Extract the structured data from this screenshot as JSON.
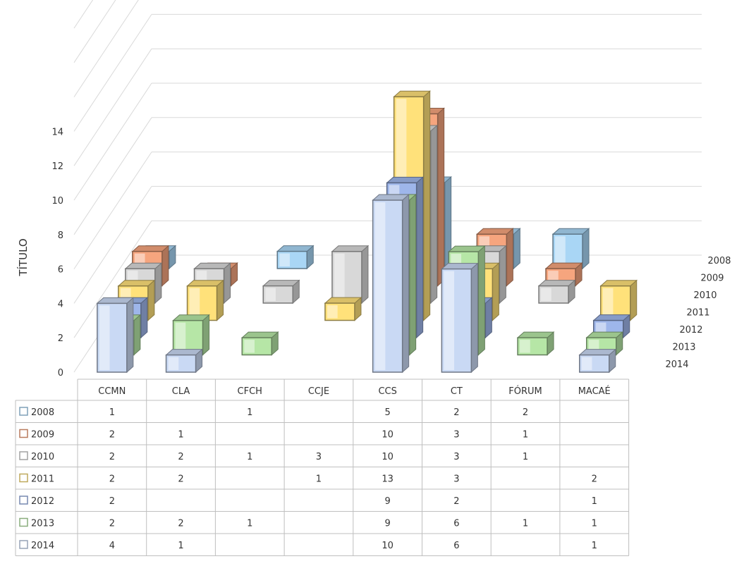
{
  "chart_data": {
    "type": "bar",
    "subtype": "3d-clustered-column-with-data-table",
    "title": "",
    "xlabel": "",
    "ylabel": "TÍTULO",
    "ylim": [
      0,
      14
    ],
    "yticks": [
      0,
      2,
      4,
      6,
      8,
      10,
      12,
      14
    ],
    "grid": true,
    "legend": "data-table",
    "categories": [
      "CCMN",
      "CLA",
      "CFCH",
      "CCJE",
      "CCS",
      "CT",
      "FÓRUM",
      "MACAÉ"
    ],
    "series": [
      {
        "name": "2008",
        "color": "#a9d6f5",
        "values": [
          1,
          null,
          1,
          null,
          5,
          2,
          2,
          null
        ]
      },
      {
        "name": "2009",
        "color": "#f6a57e",
        "values": [
          2,
          1,
          null,
          null,
          10,
          3,
          1,
          null
        ]
      },
      {
        "name": "2010",
        "color": "#d8d8d8",
        "values": [
          2,
          2,
          1,
          3,
          10,
          3,
          1,
          null
        ]
      },
      {
        "name": "2011",
        "color": "#ffe17a",
        "values": [
          2,
          2,
          null,
          1,
          13,
          3,
          null,
          2
        ]
      },
      {
        "name": "2012",
        "color": "#9eb6ea",
        "values": [
          2,
          null,
          null,
          null,
          9,
          2,
          null,
          1
        ]
      },
      {
        "name": "2013",
        "color": "#b6e6a6",
        "values": [
          2,
          2,
          1,
          null,
          9,
          6,
          1,
          1
        ]
      },
      {
        "name": "2014",
        "color": "#c9d9f4",
        "values": [
          4,
          1,
          null,
          null,
          10,
          6,
          null,
          1
        ]
      }
    ]
  }
}
